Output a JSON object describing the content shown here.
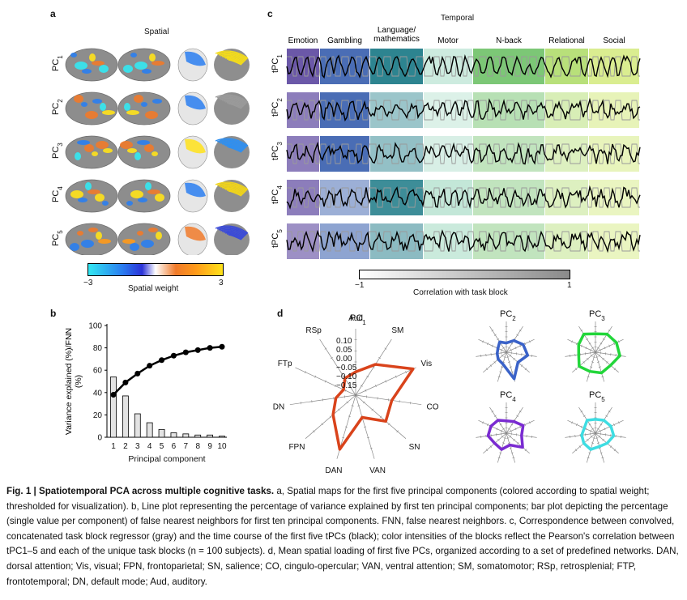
{
  "panel_a": {
    "letter": "a",
    "title": "Spatial",
    "rows": [
      "PC1",
      "PC2",
      "PC3",
      "PC4",
      "PC5"
    ],
    "colorbar": {
      "min_label": "−3",
      "max_label": "3",
      "label": "Spatial weight"
    }
  },
  "panel_b": {
    "letter": "b",
    "ylabel": "Variance explained (%)/FNN (%)",
    "xlabel": "Principal component",
    "yticks": [
      "0",
      "20",
      "40",
      "60",
      "80",
      "100"
    ],
    "xticks": [
      "1",
      "2",
      "3",
      "4",
      "5",
      "6",
      "7",
      "8",
      "9",
      "10"
    ]
  },
  "panel_c": {
    "letter": "c",
    "title": "Temporal",
    "tasks": [
      "Emotion",
      "Gambling",
      "Language/\nmathematics",
      "Motor",
      "N-back",
      "Relational",
      "Social"
    ],
    "rows": [
      "tPC1",
      "tPC2",
      "tPC3",
      "tPC4",
      "tPC5"
    ],
    "colorbar": {
      "min_label": "−1",
      "max_label": "1",
      "label": "Correlation with task block"
    }
  },
  "panel_d": {
    "letter": "d",
    "main_title": "PC1",
    "axes": [
      "Aud",
      "SM",
      "Vis",
      "CO",
      "SN",
      "VAN",
      "DAN",
      "FPN",
      "DN",
      "FTp",
      "RSp"
    ],
    "rticks": [
      "0.10",
      "0.05",
      "0.00",
      "−0.05",
      "−0.10",
      "−0.15"
    ],
    "small_titles": [
      "PC2",
      "PC3",
      "PC4",
      "PC5"
    ]
  },
  "chart_data": [
    {
      "type": "line",
      "title": "",
      "xlabel": "Principal component",
      "ylabel": "Variance explained (%)/FNN (%)",
      "x": [
        1,
        2,
        3,
        4,
        5,
        6,
        7,
        8,
        9,
        10
      ],
      "ylim": [
        0,
        100
      ],
      "series": [
        {
          "name": "Variance explained",
          "values": [
            38,
            49,
            57,
            64,
            69,
            73,
            76,
            78,
            80,
            81
          ]
        },
        {
          "name": "FNN",
          "values": [
            54,
            37,
            21,
            13,
            7,
            4,
            3,
            2,
            2,
            1
          ]
        }
      ]
    }
  ],
  "colors": {
    "pc1": "#d9431b",
    "pc2": "#3a62c8",
    "pc3": "#22d63a",
    "pc4": "#7a2bd1",
    "pc5": "#3fdde2",
    "emotion": "#6b58a8",
    "gambling": "#4a6db5",
    "language": "#2d8490",
    "motor": "#9ed8c0",
    "nback": "#7cc776",
    "relational": "#b8e07a",
    "social": "#d3ea7d"
  },
  "caption": {
    "fig": "Fig. 1 | Spatiotemporal PCA across multiple cognitive tasks.",
    "text": " a, Spatial maps for the first five principal components (colored according to spatial weight; thresholded for visualization). b, Line plot representing the percentage of variance explained by first ten principal components; bar plot depicting the percentage (single value per component) of false nearest neighbors for first ten principal components. FNN, false nearest neighbors. c, Correspondence between convolved, concatenated task block regressor (gray) and the time course of the first five tPCs (black); color intensities of the blocks reflect the Pearson's correlation between tPC1–5 and each of the unique task blocks (n = 100 subjects). d, Mean spatial loading of first five PCs, organized according to a set of predefined networks. DAN, dorsal attention; Vis, visual; FPN, frontoparietal; SN, salience; CO, cingulo-opercular; VAN, ventral attention; SM, somatomotor; RSp, retrosplenial; FTP, frontotemporal; DN, default mode; Aud, auditory."
  }
}
